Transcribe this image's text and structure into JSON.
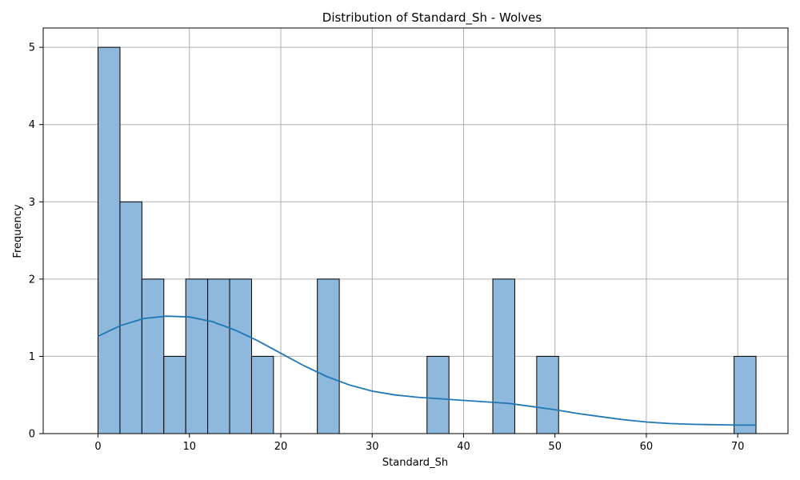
{
  "chart_data": {
    "type": "bar",
    "title": "Distribution of Standard_Sh - Wolves",
    "xlabel": "Standard_Sh",
    "ylabel": "Frequency",
    "xlim": [
      -6,
      75.5
    ],
    "ylim": [
      0,
      5.25
    ],
    "xticks": [
      0,
      10,
      20,
      30,
      40,
      50,
      60,
      70
    ],
    "yticks": [
      0,
      1,
      2,
      3,
      4,
      5
    ],
    "grid": true,
    "bin_width": 2.4,
    "bins": [
      {
        "start": 0.0,
        "end": 2.4,
        "count": 5
      },
      {
        "start": 2.4,
        "end": 4.8,
        "count": 3
      },
      {
        "start": 4.8,
        "end": 7.2,
        "count": 2
      },
      {
        "start": 7.2,
        "end": 9.6,
        "count": 1
      },
      {
        "start": 9.6,
        "end": 12.0,
        "count": 2
      },
      {
        "start": 12.0,
        "end": 14.4,
        "count": 2
      },
      {
        "start": 14.4,
        "end": 16.8,
        "count": 2
      },
      {
        "start": 16.8,
        "end": 19.2,
        "count": 1
      },
      {
        "start": 24.0,
        "end": 26.4,
        "count": 2
      },
      {
        "start": 36.0,
        "end": 38.4,
        "count": 1
      },
      {
        "start": 43.2,
        "end": 45.6,
        "count": 2
      },
      {
        "start": 48.0,
        "end": 50.4,
        "count": 1
      },
      {
        "start": 69.6,
        "end": 72.0,
        "count": 1
      }
    ],
    "kde": {
      "x": [
        0,
        2.5,
        5,
        7.5,
        10,
        12.5,
        15,
        17.5,
        20,
        22.5,
        25,
        27.5,
        30,
        32.5,
        35,
        37.5,
        40,
        42.5,
        45,
        47.5,
        50,
        52.5,
        55,
        57.5,
        60,
        62.5,
        65,
        67.5,
        70,
        72
      ],
      "y": [
        1.26,
        1.4,
        1.49,
        1.52,
        1.51,
        1.45,
        1.34,
        1.2,
        1.04,
        0.88,
        0.74,
        0.63,
        0.55,
        0.5,
        0.47,
        0.45,
        0.43,
        0.41,
        0.39,
        0.35,
        0.31,
        0.26,
        0.22,
        0.18,
        0.15,
        0.13,
        0.12,
        0.115,
        0.11,
        0.11
      ]
    },
    "colors": {
      "bar_fill": "#8fb9dc",
      "bar_edge": "#000000",
      "kde_line": "#1f77b4",
      "grid": "#b0b0b0",
      "axis": "#000000"
    }
  }
}
